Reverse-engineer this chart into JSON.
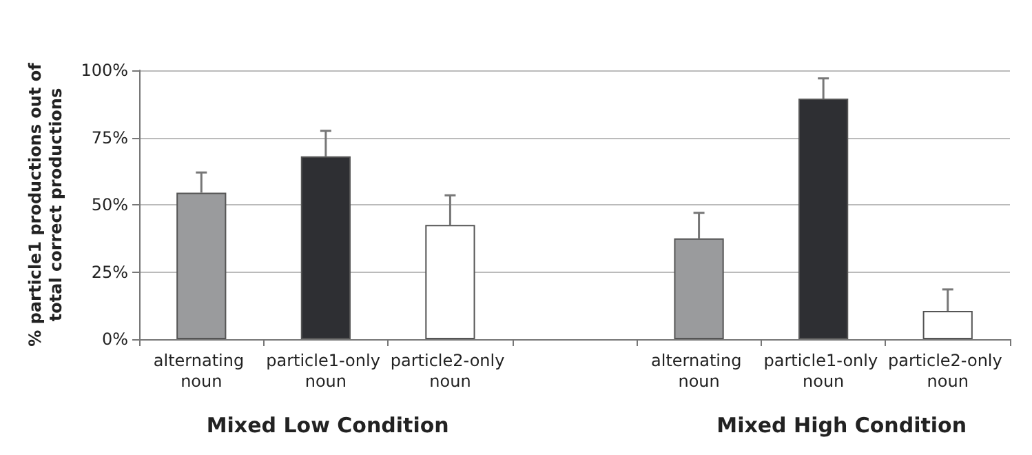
{
  "chart_data": {
    "type": "bar",
    "ylabel": "% particle1 productions out of\ntotal correct productions",
    "categories": [
      "alternating noun",
      "particle1-only noun",
      "particle2-only noun",
      null,
      "alternating noun",
      "particle1-only noun",
      "particle2-only noun"
    ],
    "values": [
      54.5,
      68,
      42.5,
      null,
      37.5,
      89.5,
      10.5
    ],
    "colors": [
      "#9a9b9d",
      "#2e2f33",
      "#ffffff",
      null,
      "#9a9b9d",
      "#2e2f33",
      "#ffffff"
    ],
    "errors": [
      7.5,
      9.5,
      11,
      null,
      9.5,
      7.5,
      8
    ],
    "ylim": [
      0,
      100
    ],
    "yticks": [
      {
        "value": 0,
        "label": "0%"
      },
      {
        "value": 25,
        "label": "25%"
      },
      {
        "value": 50,
        "label": "50%"
      },
      {
        "value": 75,
        "label": "75%"
      },
      {
        "value": 100,
        "label": "100%"
      }
    ],
    "grid": "y",
    "annotations": [
      "Mixed Low Condition",
      "Mixed High Condition"
    ]
  }
}
